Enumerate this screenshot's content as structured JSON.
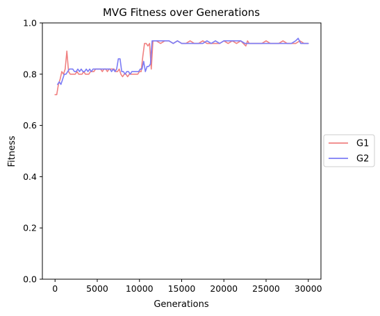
{
  "chart_data": {
    "type": "line",
    "title": "MVG Fitness over Generations",
    "xlabel": "Generations",
    "ylabel": "Fitness",
    "xlim": [
      -1500,
      31500
    ],
    "ylim": [
      0,
      1
    ],
    "xticks": [
      0,
      5000,
      10000,
      15000,
      20000,
      25000,
      30000
    ],
    "yticks": [
      0.0,
      0.2,
      0.4,
      0.6,
      0.8,
      1.0
    ],
    "xtick_labels": [
      "0",
      "5000",
      "10000",
      "15000",
      "20000",
      "25000",
      "30000"
    ],
    "ytick_labels": [
      "0.0",
      "0.2",
      "0.4",
      "0.6",
      "0.8",
      "1.0"
    ],
    "grid": false,
    "legend": {
      "placement": "center-right-outside"
    },
    "series": [
      {
        "name": "G1",
        "color": "#f08080",
        "points": [
          [
            0,
            0.72
          ],
          [
            200,
            0.72
          ],
          [
            400,
            0.76
          ],
          [
            600,
            0.78
          ],
          [
            800,
            0.81
          ],
          [
            1000,
            0.8
          ],
          [
            1200,
            0.82
          ],
          [
            1400,
            0.89
          ],
          [
            1600,
            0.81
          ],
          [
            1800,
            0.8
          ],
          [
            2000,
            0.8
          ],
          [
            2200,
            0.8
          ],
          [
            2400,
            0.8
          ],
          [
            2600,
            0.81
          ],
          [
            2800,
            0.8
          ],
          [
            3000,
            0.8
          ],
          [
            3200,
            0.8
          ],
          [
            3400,
            0.81
          ],
          [
            3600,
            0.8
          ],
          [
            3800,
            0.8
          ],
          [
            4000,
            0.8
          ],
          [
            4200,
            0.81
          ],
          [
            4400,
            0.81
          ],
          [
            4600,
            0.81
          ],
          [
            4800,
            0.82
          ],
          [
            5000,
            0.82
          ],
          [
            5200,
            0.82
          ],
          [
            5400,
            0.82
          ],
          [
            5600,
            0.81
          ],
          [
            5800,
            0.82
          ],
          [
            6000,
            0.82
          ],
          [
            6200,
            0.81
          ],
          [
            6400,
            0.82
          ],
          [
            6600,
            0.82
          ],
          [
            6800,
            0.82
          ],
          [
            7000,
            0.82
          ],
          [
            7200,
            0.81
          ],
          [
            7400,
            0.81
          ],
          [
            7600,
            0.82
          ],
          [
            7800,
            0.8
          ],
          [
            8000,
            0.79
          ],
          [
            8200,
            0.8
          ],
          [
            8400,
            0.8
          ],
          [
            8600,
            0.79
          ],
          [
            8800,
            0.8
          ],
          [
            9000,
            0.8
          ],
          [
            9200,
            0.8
          ],
          [
            9400,
            0.8
          ],
          [
            9600,
            0.8
          ],
          [
            9800,
            0.8
          ],
          [
            10000,
            0.81
          ],
          [
            10200,
            0.81
          ],
          [
            10400,
            0.87
          ],
          [
            10600,
            0.92
          ],
          [
            10800,
            0.92
          ],
          [
            11000,
            0.91
          ],
          [
            11200,
            0.92
          ],
          [
            11400,
            0.82
          ],
          [
            11600,
            0.93
          ],
          [
            12000,
            0.93
          ],
          [
            12500,
            0.92
          ],
          [
            13000,
            0.93
          ],
          [
            13500,
            0.93
          ],
          [
            14000,
            0.92
          ],
          [
            14500,
            0.93
          ],
          [
            15000,
            0.92
          ],
          [
            15500,
            0.92
          ],
          [
            16000,
            0.93
          ],
          [
            16500,
            0.92
          ],
          [
            17000,
            0.92
          ],
          [
            17500,
            0.93
          ],
          [
            18000,
            0.92
          ],
          [
            18500,
            0.92
          ],
          [
            19000,
            0.92
          ],
          [
            19500,
            0.92
          ],
          [
            20000,
            0.93
          ],
          [
            20500,
            0.92
          ],
          [
            21000,
            0.93
          ],
          [
            21500,
            0.92
          ],
          [
            22000,
            0.93
          ],
          [
            22300,
            0.92
          ],
          [
            22600,
            0.91
          ],
          [
            22800,
            0.93
          ],
          [
            23000,
            0.92
          ],
          [
            23500,
            0.92
          ],
          [
            24000,
            0.92
          ],
          [
            24500,
            0.92
          ],
          [
            25000,
            0.93
          ],
          [
            25500,
            0.92
          ],
          [
            26000,
            0.92
          ],
          [
            26500,
            0.92
          ],
          [
            27000,
            0.93
          ],
          [
            27500,
            0.92
          ],
          [
            28000,
            0.92
          ],
          [
            28500,
            0.92
          ],
          [
            29000,
            0.93
          ],
          [
            29500,
            0.92
          ],
          [
            30000,
            0.92
          ]
        ]
      },
      {
        "name": "G2",
        "color": "#7b7bf5",
        "points": [
          [
            300,
            0.76
          ],
          [
            500,
            0.77
          ],
          [
            700,
            0.76
          ],
          [
            900,
            0.78
          ],
          [
            1100,
            0.8
          ],
          [
            1300,
            0.8
          ],
          [
            1500,
            0.81
          ],
          [
            1700,
            0.82
          ],
          [
            1900,
            0.82
          ],
          [
            2100,
            0.82
          ],
          [
            2300,
            0.81
          ],
          [
            2500,
            0.81
          ],
          [
            2700,
            0.82
          ],
          [
            2900,
            0.81
          ],
          [
            3100,
            0.82
          ],
          [
            3300,
            0.81
          ],
          [
            3500,
            0.81
          ],
          [
            3700,
            0.82
          ],
          [
            3900,
            0.81
          ],
          [
            4100,
            0.82
          ],
          [
            4300,
            0.81
          ],
          [
            4500,
            0.82
          ],
          [
            4700,
            0.82
          ],
          [
            4900,
            0.82
          ],
          [
            5100,
            0.82
          ],
          [
            5300,
            0.82
          ],
          [
            5500,
            0.82
          ],
          [
            5700,
            0.82
          ],
          [
            5900,
            0.82
          ],
          [
            6100,
            0.82
          ],
          [
            6300,
            0.82
          ],
          [
            6500,
            0.82
          ],
          [
            6700,
            0.81
          ],
          [
            6900,
            0.82
          ],
          [
            7100,
            0.81
          ],
          [
            7300,
            0.82
          ],
          [
            7500,
            0.86
          ],
          [
            7700,
            0.86
          ],
          [
            7900,
            0.81
          ],
          [
            8100,
            0.81
          ],
          [
            8300,
            0.8
          ],
          [
            8500,
            0.81
          ],
          [
            8700,
            0.81
          ],
          [
            8900,
            0.8
          ],
          [
            9100,
            0.81
          ],
          [
            9300,
            0.81
          ],
          [
            9500,
            0.81
          ],
          [
            9700,
            0.81
          ],
          [
            9900,
            0.81
          ],
          [
            10100,
            0.82
          ],
          [
            10300,
            0.82
          ],
          [
            10500,
            0.85
          ],
          [
            10700,
            0.81
          ],
          [
            10900,
            0.83
          ],
          [
            11100,
            0.83
          ],
          [
            11300,
            0.84
          ],
          [
            11500,
            0.93
          ],
          [
            11700,
            0.93
          ],
          [
            12000,
            0.93
          ],
          [
            12500,
            0.93
          ],
          [
            13000,
            0.93
          ],
          [
            13500,
            0.93
          ],
          [
            14000,
            0.92
          ],
          [
            14500,
            0.93
          ],
          [
            15000,
            0.92
          ],
          [
            15500,
            0.92
          ],
          [
            16000,
            0.92
          ],
          [
            16500,
            0.92
          ],
          [
            17000,
            0.92
          ],
          [
            17500,
            0.92
          ],
          [
            18000,
            0.93
          ],
          [
            18500,
            0.92
          ],
          [
            19000,
            0.93
          ],
          [
            19500,
            0.92
          ],
          [
            20000,
            0.93
          ],
          [
            20500,
            0.93
          ],
          [
            21000,
            0.93
          ],
          [
            21500,
            0.93
          ],
          [
            22000,
            0.93
          ],
          [
            22500,
            0.92
          ],
          [
            23000,
            0.92
          ],
          [
            23500,
            0.92
          ],
          [
            24000,
            0.92
          ],
          [
            24500,
            0.92
          ],
          [
            25000,
            0.92
          ],
          [
            25500,
            0.92
          ],
          [
            26000,
            0.92
          ],
          [
            26500,
            0.92
          ],
          [
            27000,
            0.92
          ],
          [
            27500,
            0.92
          ],
          [
            28000,
            0.92
          ],
          [
            28500,
            0.93
          ],
          [
            28800,
            0.94
          ],
          [
            29100,
            0.92
          ],
          [
            29500,
            0.92
          ],
          [
            30000,
            0.92
          ]
        ]
      }
    ]
  }
}
